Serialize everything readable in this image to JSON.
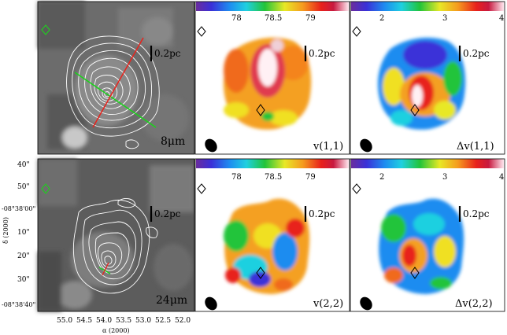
{
  "panels": {
    "top_left_label": "8μm",
    "bottom_left_label": "24μm",
    "top_mid_label": "v(1,1)",
    "top_right_label": "Δv(1,1)",
    "bottom_mid_label": "v(2,2)",
    "bottom_right_label": "Δv(2,2)",
    "scale_bar": "0.2pc"
  },
  "colorbars": {
    "velocity_ticks": [
      "78",
      "78.5",
      "79"
    ],
    "width_ticks": [
      "2",
      "3",
      "4"
    ]
  },
  "axes": {
    "dec_ticks": [
      "40\"",
      "50\"",
      "-08°38'00\"",
      "10\"",
      "20\"",
      "30\"",
      "-08°38'40\""
    ],
    "ra_ticks": [
      "55.0",
      "54.5",
      "54.0",
      "53.5",
      "53.0",
      "52.5",
      "52.0"
    ],
    "ylabel": "δ (2000)",
    "xlabel": "α (2000)"
  },
  "colors": {
    "ir_background": "#6e6e6e",
    "contour": "#ffffff",
    "cut_red": "#e8231c",
    "cut_green": "#19d419",
    "marker_green": "#22c922"
  }
}
